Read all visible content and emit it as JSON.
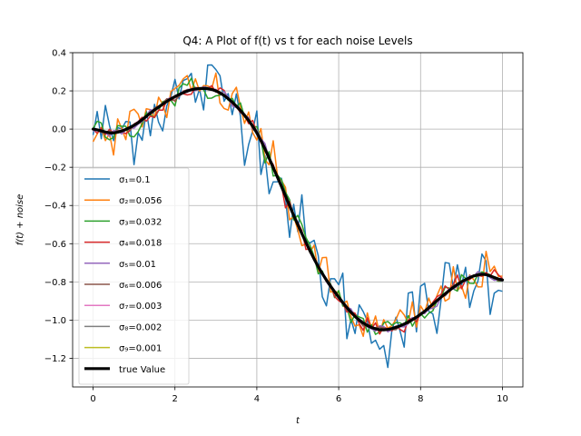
{
  "chart_data": {
    "type": "line",
    "title": "Q4: A Plot of f(t) vs t for each noise Levels",
    "xlabel": "t",
    "ylabel": "f(t) + noise",
    "xlim": [
      -0.5,
      10.5
    ],
    "ylim": [
      -1.35,
      0.4
    ],
    "xticks": [
      0,
      2,
      4,
      6,
      8,
      10
    ],
    "yticks": [
      0.4,
      0.2,
      0.0,
      -0.2,
      -0.4,
      -0.6,
      -0.8,
      -1.0,
      -1.2
    ],
    "xtick_labels": [
      "0",
      "2",
      "4",
      "6",
      "8",
      "10"
    ],
    "ytick_labels": [
      "0.4",
      "0.2",
      "0.0",
      "−0.2",
      "−0.4",
      "−0.6",
      "−0.8",
      "−1.0",
      "−1.2"
    ],
    "grid": true,
    "legend_position": "lower-left",
    "t_range": [
      0,
      10
    ],
    "n_points": 101,
    "true_curve": {
      "name": "true Value",
      "color": "#000000",
      "keypoints": [
        [
          0,
          0.0
        ],
        [
          0.5,
          -0.02
        ],
        [
          1.0,
          0.02
        ],
        [
          1.5,
          0.1
        ],
        [
          2.0,
          0.17
        ],
        [
          2.5,
          0.21
        ],
        [
          3.0,
          0.2
        ],
        [
          3.5,
          0.12
        ],
        [
          4.0,
          -0.02
        ],
        [
          4.5,
          -0.25
        ],
        [
          5.0,
          -0.5
        ],
        [
          5.5,
          -0.72
        ],
        [
          6.0,
          -0.88
        ],
        [
          6.5,
          -1.0
        ],
        [
          7.0,
          -1.05
        ],
        [
          7.5,
          -1.03
        ],
        [
          8.0,
          -0.97
        ],
        [
          8.5,
          -0.88
        ],
        [
          9.0,
          -0.8
        ],
        [
          9.5,
          -0.76
        ],
        [
          10.0,
          -0.79
        ]
      ]
    },
    "series": [
      {
        "name": "σ₁=0.1",
        "sigma": 0.1,
        "color": "#1f77b4"
      },
      {
        "name": "σ₂=0.056",
        "sigma": 0.056,
        "color": "#ff7f0e"
      },
      {
        "name": "σ₃=0.032",
        "sigma": 0.032,
        "color": "#2ca02c"
      },
      {
        "name": "σ₄=0.018",
        "sigma": 0.018,
        "color": "#d62728"
      },
      {
        "name": "σ₅=0.01",
        "sigma": 0.01,
        "color": "#9467bd"
      },
      {
        "name": "σ₆=0.006",
        "sigma": 0.006,
        "color": "#8c564b"
      },
      {
        "name": "σ₇=0.003",
        "sigma": 0.003,
        "color": "#e377c2"
      },
      {
        "name": "σ₈=0.002",
        "sigma": 0.002,
        "color": "#7f7f7f"
      },
      {
        "name": "σ₉=0.001",
        "sigma": 0.001,
        "color": "#bcbd22"
      }
    ]
  }
}
